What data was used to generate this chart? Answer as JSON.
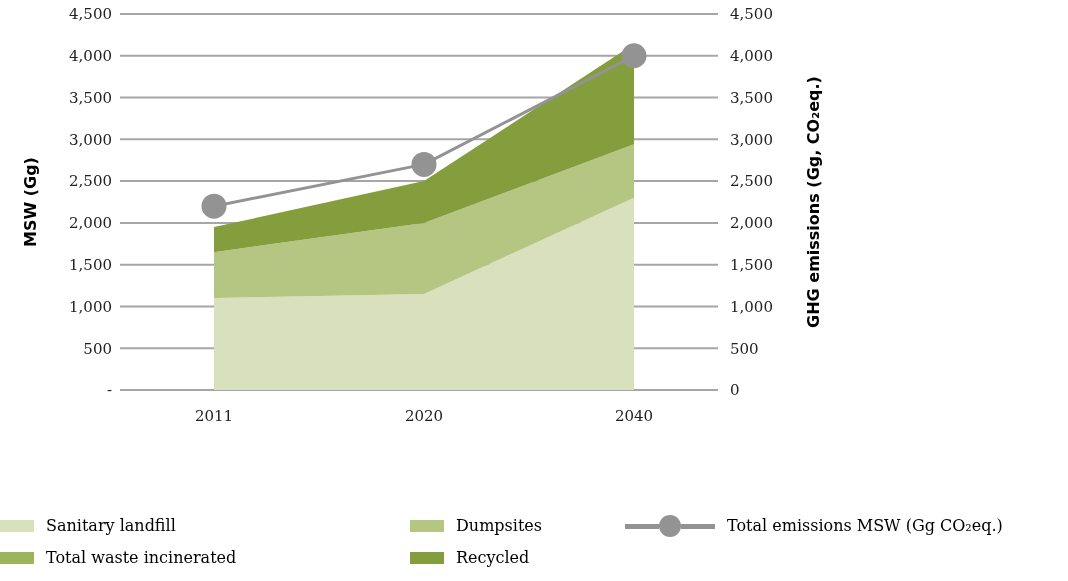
{
  "chart_data": {
    "type": "area",
    "stacked": true,
    "categories": [
      "2011",
      "2020",
      "2040"
    ],
    "series": [
      {
        "name": "Sanitary landfill",
        "color": "#d9e0bd",
        "values": [
          1100,
          1150,
          2300
        ]
      },
      {
        "name": "Dumpsites",
        "color": "#b5c582",
        "values": [
          550,
          850,
          640
        ]
      },
      {
        "name": "Total waste incinerated",
        "color": "#9cb55a",
        "values": [
          null,
          null,
          null
        ]
      },
      {
        "name": "Recycled",
        "color": "#849e3e",
        "values": [
          300,
          500,
          1200
        ]
      },
      {
        "name": "Total emissions MSW (Gg CO₂eq.)",
        "type": "line",
        "color": "#939393",
        "marker": "circle",
        "values": [
          2200,
          2700,
          4000
        ]
      }
    ],
    "ylabel": "MSW (Gg)",
    "y2label": "GHG emissions (Gg, CO₂eq.)",
    "ylim": [
      0,
      4500
    ],
    "yticks": [
      {
        "value": 0,
        "label": "-"
      },
      {
        "value": 500,
        "label": "500"
      },
      {
        "value": 1000,
        "label": "1,000"
      },
      {
        "value": 1500,
        "label": "1,500"
      },
      {
        "value": 2000,
        "label": "2,000"
      },
      {
        "value": 2500,
        "label": "2,500"
      },
      {
        "value": 3000,
        "label": "3,000"
      },
      {
        "value": 3500,
        "label": "3,500"
      },
      {
        "value": 4000,
        "label": "4,000"
      },
      {
        "value": 4500,
        "label": "4,500"
      }
    ],
    "y2lim": [
      0,
      4500
    ],
    "y2ticks": [
      {
        "value": 0,
        "label": "0"
      },
      {
        "value": 500,
        "label": "500"
      },
      {
        "value": 1000,
        "label": "1,000"
      },
      {
        "value": 1500,
        "label": "1,500"
      },
      {
        "value": 2000,
        "label": "2,000"
      },
      {
        "value": 2500,
        "label": "2,500"
      },
      {
        "value": 3000,
        "label": "3,000"
      },
      {
        "value": 3500,
        "label": "3,500"
      },
      {
        "value": 4000,
        "label": "4,000"
      },
      {
        "value": 4500,
        "label": "4,500"
      }
    ],
    "grid": "y",
    "legend": "bottom"
  }
}
